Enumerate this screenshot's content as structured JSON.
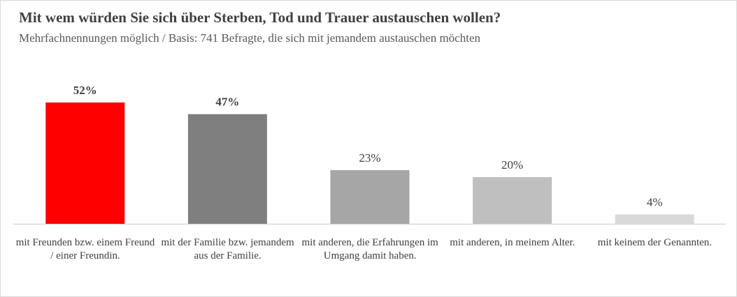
{
  "chart_data": {
    "type": "bar",
    "title": "Mit wem würden Sie sich über Sterben, Tod und Trauer austauschen wollen?",
    "subtitle": "Mehrfachnennungen möglich / Basis: 741 Befragte, die sich mit jemandem austauschen möchten",
    "categories": [
      "mit Freunden bzw. einem Freund / einer Freundin.",
      "mit der Familie bzw. jemandem aus der Familie.",
      "mit anderen, die Erfahrungen im Umgang damit haben.",
      "mit anderen, in meinem Alter.",
      "mit keinem der Genannten."
    ],
    "values": [
      52,
      47,
      23,
      20,
      4
    ],
    "labels": [
      "52%",
      "47%",
      "23%",
      "20%",
      "4%"
    ],
    "label_bold": [
      true,
      true,
      false,
      false,
      false
    ],
    "colors": [
      "#ff0000",
      "#7f7f7f",
      "#a6a6a6",
      "#bfbfbf",
      "#d9d9d9"
    ],
    "unit": "%",
    "ylim": [
      0,
      60
    ],
    "grid": false,
    "legend": "none"
  }
}
